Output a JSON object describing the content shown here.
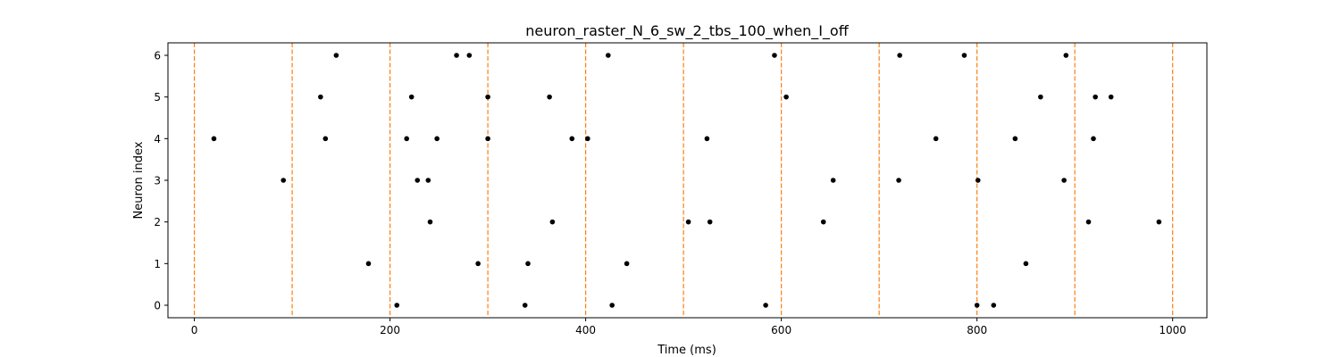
{
  "chart_data": {
    "type": "scatter",
    "title": "neuron_raster_N_6_sw_2_tbs_100_when_I_off",
    "xlabel": "Time (ms)",
    "ylabel": "Neuron index",
    "xlim": [
      -27,
      1035
    ],
    "ylim": [
      -0.3,
      6.3
    ],
    "xticks": [
      "0",
      "200",
      "400",
      "600",
      "800",
      "1000"
    ],
    "yticks": [
      "0",
      "1",
      "2",
      "3",
      "4",
      "5",
      "6"
    ],
    "grid": false,
    "marker_color": "#000000",
    "vline_color": "#ff7f0e",
    "vlines": [
      0,
      100,
      200,
      300,
      400,
      500,
      600,
      700,
      800,
      900,
      1000
    ],
    "points": [
      {
        "neuron": 0,
        "times": [
          207,
          338,
          427,
          584,
          800,
          817
        ]
      },
      {
        "neuron": 1,
        "times": [
          178,
          290,
          341,
          442,
          850
        ]
      },
      {
        "neuron": 2,
        "times": [
          241,
          366,
          505,
          527,
          643,
          914,
          986
        ]
      },
      {
        "neuron": 3,
        "times": [
          91,
          228,
          239,
          653,
          720,
          801,
          889
        ]
      },
      {
        "neuron": 4,
        "times": [
          20,
          134,
          217,
          248,
          300,
          386,
          402,
          524,
          758,
          839,
          919
        ]
      },
      {
        "neuron": 5,
        "times": [
          129,
          222,
          300,
          363,
          605,
          865,
          921,
          937
        ]
      },
      {
        "neuron": 6,
        "times": [
          145,
          268,
          281,
          423,
          593,
          721,
          787,
          891
        ]
      }
    ]
  }
}
